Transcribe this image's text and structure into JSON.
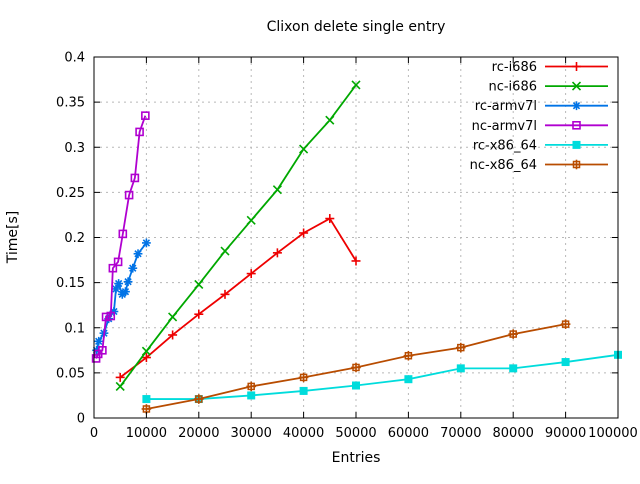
{
  "chart_data": {
    "type": "line",
    "title": "Clixon delete single entry",
    "xlabel": "Entries",
    "ylabel": "Time[s]",
    "xlim": [
      0,
      100000
    ],
    "ylim": [
      0,
      0.4
    ],
    "xtick_values": [
      0,
      10000,
      20000,
      30000,
      40000,
      50000,
      60000,
      70000,
      80000,
      90000,
      100000
    ],
    "xtick_labels": [
      "0",
      "10000",
      "20000",
      "30000",
      "40000",
      "50000",
      "60000",
      "70000",
      "80000",
      "90000",
      "100000"
    ],
    "ytick_values": [
      0,
      0.05,
      0.1,
      0.15,
      0.2,
      0.25,
      0.3,
      0.35,
      0.4
    ],
    "ytick_labels": [
      "0",
      "0.05",
      "0.1",
      "0.15",
      "0.2",
      "0.25",
      "0.3",
      "0.35",
      "0.4"
    ],
    "grid": true,
    "grid_color": "#b8b8b8",
    "border_color": "#000000",
    "background": "#ffffff",
    "legend_position": "top-right-inside",
    "series": [
      {
        "name": "rc-i686",
        "color": "#ee0000",
        "marker": "plus",
        "points": [
          [
            5000,
            0.045
          ],
          [
            10000,
            0.067
          ],
          [
            15000,
            0.092
          ],
          [
            20000,
            0.115
          ],
          [
            25000,
            0.137
          ],
          [
            30000,
            0.16
          ],
          [
            35000,
            0.183
          ],
          [
            40000,
            0.205
          ],
          [
            45000,
            0.221
          ],
          [
            50000,
            0.174
          ]
        ]
      },
      {
        "name": "nc-i686",
        "color": "#00a800",
        "marker": "cross",
        "points": [
          [
            5000,
            0.035
          ],
          [
            10000,
            0.074
          ],
          [
            15000,
            0.112
          ],
          [
            20000,
            0.148
          ],
          [
            25000,
            0.185
          ],
          [
            30000,
            0.219
          ],
          [
            35000,
            0.253
          ],
          [
            40000,
            0.298
          ],
          [
            45000,
            0.33
          ],
          [
            50000,
            0.369
          ]
        ]
      },
      {
        "name": "rc-armv7l",
        "color": "#0073e6",
        "marker": "asterisk",
        "points": [
          [
            500,
            0.075
          ],
          [
            900,
            0.085
          ],
          [
            1900,
            0.094
          ],
          [
            2800,
            0.11
          ],
          [
            3800,
            0.118
          ],
          [
            4200,
            0.143
          ],
          [
            4700,
            0.149
          ],
          [
            5400,
            0.137
          ],
          [
            6000,
            0.14
          ],
          [
            6500,
            0.151
          ],
          [
            7400,
            0.166
          ],
          [
            8400,
            0.182
          ],
          [
            10000,
            0.194
          ]
        ]
      },
      {
        "name": "nc-armv7l",
        "color": "#b000d0",
        "marker": "square-open",
        "points": [
          [
            400,
            0.066
          ],
          [
            800,
            0.071
          ],
          [
            1600,
            0.075
          ],
          [
            2300,
            0.112
          ],
          [
            3200,
            0.113
          ],
          [
            3600,
            0.166
          ],
          [
            4600,
            0.173
          ],
          [
            5500,
            0.204
          ],
          [
            6700,
            0.247
          ],
          [
            7800,
            0.266
          ],
          [
            8700,
            0.317
          ],
          [
            9800,
            0.335
          ]
        ]
      },
      {
        "name": "rc-x86_64",
        "color": "#00dcdc",
        "marker": "square-filled",
        "points": [
          [
            10000,
            0.021
          ],
          [
            20000,
            0.021
          ],
          [
            30000,
            0.025
          ],
          [
            40000,
            0.03
          ],
          [
            50000,
            0.036
          ],
          [
            60000,
            0.043
          ],
          [
            70000,
            0.055
          ],
          [
            80000,
            0.055
          ],
          [
            90000,
            0.062
          ],
          [
            100000,
            0.07
          ]
        ]
      },
      {
        "name": "nc-x86_64",
        "color": "#b84c00",
        "marker": "square-plus",
        "points": [
          [
            10000,
            0.01
          ],
          [
            20000,
            0.021
          ],
          [
            30000,
            0.035
          ],
          [
            40000,
            0.045
          ],
          [
            50000,
            0.056
          ],
          [
            60000,
            0.069
          ],
          [
            70000,
            0.078
          ],
          [
            80000,
            0.093
          ],
          [
            90000,
            0.104
          ]
        ]
      }
    ]
  }
}
